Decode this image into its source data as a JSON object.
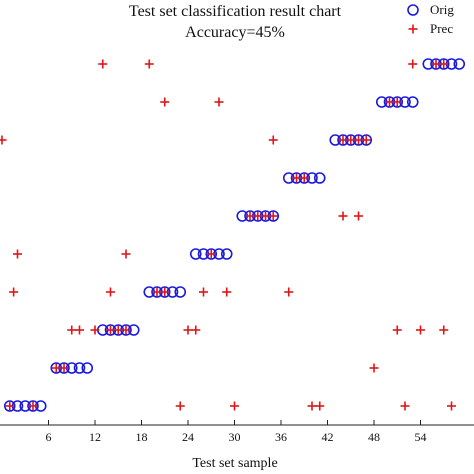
{
  "chart_data": {
    "type": "scatter",
    "title": "Test set classification result chart",
    "subtitle": "Accuracy=45%",
    "xlabel": "Test set sample",
    "ylabel": "",
    "xlim": [
      0,
      60
    ],
    "ylim": [
      0.5,
      10.5
    ],
    "xticks": [
      6,
      12,
      18,
      24,
      30,
      36,
      42,
      48,
      54
    ],
    "grid": false,
    "legend_position": "top-right",
    "colors": {
      "original": "#1a1adf",
      "predicted": "#e01616"
    },
    "series": [
      {
        "name": "Orig",
        "marker": "circle",
        "points": [
          [
            1,
            1
          ],
          [
            2,
            1
          ],
          [
            3,
            1
          ],
          [
            4,
            1
          ],
          [
            5,
            1
          ],
          [
            7,
            2
          ],
          [
            8,
            2
          ],
          [
            9,
            2
          ],
          [
            10,
            2
          ],
          [
            11,
            2
          ],
          [
            13,
            3
          ],
          [
            14,
            3
          ],
          [
            15,
            3
          ],
          [
            16,
            3
          ],
          [
            17,
            3
          ],
          [
            19,
            4
          ],
          [
            20,
            4
          ],
          [
            21,
            4
          ],
          [
            22,
            4
          ],
          [
            23,
            4
          ],
          [
            25,
            5
          ],
          [
            26,
            5
          ],
          [
            27,
            5
          ],
          [
            28,
            5
          ],
          [
            29,
            5
          ],
          [
            31,
            6
          ],
          [
            32,
            6
          ],
          [
            33,
            6
          ],
          [
            34,
            6
          ],
          [
            35,
            6
          ],
          [
            37,
            7
          ],
          [
            38,
            7
          ],
          [
            39,
            7
          ],
          [
            40,
            7
          ],
          [
            41,
            7
          ],
          [
            43,
            8
          ],
          [
            44,
            8
          ],
          [
            45,
            8
          ],
          [
            46,
            8
          ],
          [
            47,
            8
          ],
          [
            49,
            9
          ],
          [
            50,
            9
          ],
          [
            51,
            9
          ],
          [
            52,
            9
          ],
          [
            53,
            9
          ],
          [
            55,
            10
          ],
          [
            56,
            10
          ],
          [
            57,
            10
          ],
          [
            58,
            10
          ],
          [
            59,
            10
          ]
        ]
      },
      {
        "name": "Prec",
        "marker": "plus",
        "points": [
          [
            1,
            1
          ],
          [
            4,
            1
          ],
          [
            23,
            1
          ],
          [
            30,
            1
          ],
          [
            40,
            1
          ],
          [
            41,
            1
          ],
          [
            52,
            1
          ],
          [
            58,
            1
          ],
          [
            7,
            2
          ],
          [
            8,
            2
          ],
          [
            48,
            2
          ],
          [
            9,
            3
          ],
          [
            10,
            3
          ],
          [
            12,
            3
          ],
          [
            14,
            3
          ],
          [
            15,
            3
          ],
          [
            16,
            3
          ],
          [
            24,
            3
          ],
          [
            25,
            3
          ],
          [
            51,
            3
          ],
          [
            54,
            3
          ],
          [
            57,
            3
          ],
          [
            1.5,
            4
          ],
          [
            14,
            4
          ],
          [
            20,
            4
          ],
          [
            21,
            4
          ],
          [
            26,
            4
          ],
          [
            29,
            4
          ],
          [
            37,
            4
          ],
          [
            2,
            5
          ],
          [
            16,
            5
          ],
          [
            27,
            5
          ],
          [
            32,
            6
          ],
          [
            33,
            6
          ],
          [
            34,
            6
          ],
          [
            35,
            6
          ],
          [
            44,
            6
          ],
          [
            46,
            6
          ],
          [
            38,
            7
          ],
          [
            39,
            7
          ],
          [
            0,
            8
          ],
          [
            35,
            8
          ],
          [
            44,
            8
          ],
          [
            45,
            8
          ],
          [
            46,
            8
          ],
          [
            47,
            8
          ],
          [
            21,
            9
          ],
          [
            28,
            9
          ],
          [
            50,
            9
          ],
          [
            51,
            9
          ],
          [
            13,
            10
          ],
          [
            19,
            10
          ],
          [
            53,
            10
          ],
          [
            56,
            10
          ],
          [
            57,
            10
          ]
        ]
      }
    ]
  }
}
